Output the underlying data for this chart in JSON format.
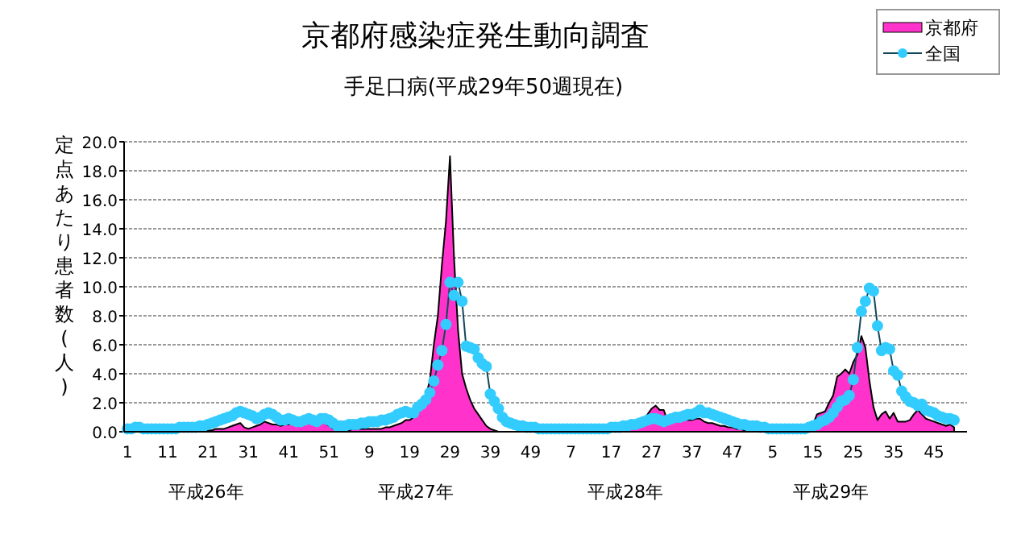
{
  "chart_data": {
    "type": "line",
    "title": "京都府感染症発生動向調査",
    "subtitle": "手足口病(平成29年50週現在)",
    "ylabel": "定点あたり患者数(人)",
    "annotations": [
      "平成26年",
      "平成27年",
      "平成28年",
      "平成29年"
    ],
    "categories": [
      "1",
      null,
      null,
      null,
      null,
      null,
      null,
      null,
      null,
      null,
      "11",
      null,
      null,
      null,
      null,
      null,
      null,
      null,
      null,
      null,
      "21",
      null,
      null,
      null,
      null,
      null,
      null,
      null,
      null,
      null,
      "31",
      null,
      null,
      null,
      null,
      null,
      null,
      null,
      null,
      null,
      "41",
      null,
      null,
      null,
      null,
      null,
      null,
      null,
      null,
      null,
      "51",
      null,
      null,
      null,
      null,
      null,
      null,
      null,
      null,
      null,
      "9",
      null,
      null,
      null,
      null,
      null,
      null,
      null,
      null,
      null,
      "19",
      null,
      null,
      null,
      null,
      null,
      null,
      null,
      null,
      null,
      "29",
      null,
      null,
      null,
      null,
      null,
      null,
      null,
      null,
      null,
      "39",
      null,
      null,
      null,
      null,
      null,
      null,
      null,
      null,
      null,
      "49",
      null,
      null,
      null,
      null,
      null,
      null,
      null,
      null,
      null,
      "7",
      null,
      null,
      null,
      null,
      null,
      null,
      null,
      null,
      null,
      "17",
      null,
      null,
      null,
      null,
      null,
      null,
      null,
      null,
      null,
      "27",
      null,
      null,
      null,
      null,
      null,
      null,
      null,
      null,
      null,
      "37",
      null,
      null,
      null,
      null,
      null,
      null,
      null,
      null,
      null,
      "47",
      null,
      null,
      null,
      null,
      null,
      null,
      null,
      null,
      null,
      "5",
      null,
      null,
      null,
      null,
      null,
      null,
      null,
      null,
      null,
      "15",
      null,
      null,
      null,
      null,
      null,
      null,
      null,
      null,
      null,
      "25",
      null,
      null,
      null,
      null,
      null,
      null,
      null,
      null,
      null,
      "35",
      null,
      null,
      null,
      null,
      null,
      null,
      null,
      null,
      null,
      "45",
      null,
      null,
      null,
      null,
      null
    ],
    "series": [
      {
        "name": "京都府",
        "type": "area",
        "color": "#ff33cc",
        "values": [
          0,
          0,
          0,
          0,
          0,
          0,
          0,
          0,
          0,
          0,
          0,
          0,
          0,
          0,
          0,
          0,
          0,
          0,
          0,
          0,
          0.1,
          0.1,
          0.2,
          0.2,
          0.2,
          0.3,
          0.4,
          0.5,
          0.6,
          0.3,
          0.2,
          0.3,
          0.4,
          0.5,
          0.7,
          0.6,
          0.5,
          0.5,
          0.4,
          0.5,
          0.5,
          0.6,
          0.5,
          0.4,
          0.5,
          0.6,
          0.5,
          0.6,
          0.7,
          0.6,
          0.4,
          0.2,
          0.1,
          0.1,
          0.1,
          0.1,
          0.2,
          0.2,
          0.2,
          0.2,
          0.2,
          0.2,
          0.2,
          0.2,
          0.3,
          0.3,
          0.4,
          0.5,
          0.6,
          0.8,
          0.8,
          1.0,
          1.2,
          1.8,
          2.5,
          3.5,
          6.0,
          8.0,
          11.5,
          14.5,
          19.0,
          12.0,
          7.0,
          4.0,
          3.0,
          2.2,
          1.6,
          1.2,
          0.8,
          0.4,
          0.2,
          0.1,
          0,
          0,
          0,
          0,
          0,
          0,
          0,
          0,
          0,
          0,
          0,
          0,
          0,
          0,
          0,
          0,
          0,
          0,
          0,
          0,
          0,
          0,
          0,
          0,
          0,
          0,
          0,
          0,
          0.1,
          0.1,
          0.2,
          0.2,
          0.3,
          0.4,
          0.5,
          0.6,
          0.8,
          1.2,
          1.6,
          1.8,
          1.5,
          1.5,
          0.7,
          0.8,
          0.9,
          1.1,
          0.9,
          0.8,
          0.8,
          0.9,
          0.9,
          0.7,
          0.6,
          0.6,
          0.5,
          0.4,
          0.4,
          0.3,
          0.3,
          0.2,
          0.2,
          0.1,
          0.1,
          0.1,
          0.1,
          0.1,
          0.1,
          0.1,
          0.1,
          0.1,
          0.1,
          0.1,
          0.1,
          0.1,
          0.1,
          0.1,
          0.2,
          0.3,
          0.5,
          1.2,
          1.3,
          1.4,
          2.0,
          2.5,
          3.8,
          4.0,
          4.3,
          4.0,
          4.8,
          5.3,
          6.6,
          5.8,
          3.5,
          1.7,
          0.8,
          1.2,
          1.4,
          0.9,
          1.3,
          0.7,
          0.7,
          0.7,
          0.8,
          1.2,
          1.5,
          1.2,
          0.9,
          0.8,
          0.7,
          0.6,
          0.5,
          0.4,
          0.5,
          0.3
        ]
      },
      {
        "name": "全国",
        "type": "line",
        "color": "#33ccff",
        "marker": "circle",
        "values": [
          0.2,
          0.2,
          0.3,
          0.3,
          0.2,
          0.2,
          0.2,
          0.2,
          0.2,
          0.2,
          0.2,
          0.2,
          0.2,
          0.3,
          0.3,
          0.3,
          0.3,
          0.3,
          0.4,
          0.4,
          0.5,
          0.6,
          0.7,
          0.8,
          0.9,
          1.0,
          1.1,
          1.3,
          1.4,
          1.3,
          1.2,
          1.1,
          0.9,
          1.0,
          1.2,
          1.3,
          1.2,
          1.0,
          0.8,
          0.8,
          0.9,
          0.8,
          0.7,
          0.7,
          0.8,
          0.9,
          0.8,
          0.7,
          0.9,
          0.9,
          0.8,
          0.6,
          0.4,
          0.4,
          0.4,
          0.5,
          0.5,
          0.5,
          0.6,
          0.6,
          0.7,
          0.7,
          0.7,
          0.8,
          0.8,
          0.9,
          1.0,
          1.2,
          1.3,
          1.4,
          1.3,
          1.3,
          1.7,
          1.9,
          2.2,
          2.7,
          3.5,
          4.6,
          5.6,
          7.4,
          10.3,
          9.4,
          10.3,
          9.0,
          5.9,
          5.8,
          5.7,
          5.1,
          4.7,
          4.5,
          2.6,
          2.1,
          1.6,
          1.0,
          0.7,
          0.6,
          0.5,
          0.4,
          0.4,
          0.3,
          0.3,
          0.3,
          0.2,
          0.2,
          0.2,
          0.2,
          0.2,
          0.2,
          0.2,
          0.2,
          0.2,
          0.2,
          0.2,
          0.2,
          0.2,
          0.2,
          0.2,
          0.2,
          0.2,
          0.2,
          0.3,
          0.3,
          0.3,
          0.4,
          0.4,
          0.5,
          0.5,
          0.6,
          0.7,
          0.8,
          0.9,
          0.9,
          0.8,
          0.7,
          0.8,
          0.9,
          1.0,
          1.0,
          1.1,
          1.2,
          1.2,
          1.3,
          1.5,
          1.3,
          1.3,
          1.2,
          1.1,
          1.0,
          0.9,
          0.8,
          0.7,
          0.6,
          0.5,
          0.5,
          0.4,
          0.4,
          0.4,
          0.3,
          0.3,
          0.2,
          0.2,
          0.2,
          0.2,
          0.2,
          0.2,
          0.2,
          0.2,
          0.2,
          0.2,
          0.3,
          0.4,
          0.5,
          0.7,
          0.8,
          1.0,
          1.3,
          1.7,
          2.1,
          2.2,
          2.5,
          3.6,
          5.8,
          8.3,
          9.0,
          9.9,
          9.7,
          7.3,
          5.6,
          5.8,
          5.7,
          4.2,
          3.9,
          2.8,
          2.4,
          2.1,
          2.0,
          1.8,
          1.9,
          1.5,
          1.4,
          1.3,
          1.1,
          1.0,
          0.9,
          0.9,
          0.8
        ]
      }
    ],
    "ylim": [
      0,
      20
    ],
    "yticks": [
      {
        "value": 0,
        "label": "0.0"
      },
      {
        "value": 2,
        "label": "2.0"
      },
      {
        "value": 4,
        "label": "4.0"
      },
      {
        "value": 6,
        "label": "6.0"
      },
      {
        "value": 8,
        "label": "8.0"
      },
      {
        "value": 10,
        "label": "10.0"
      },
      {
        "value": 12,
        "label": "12.0"
      },
      {
        "value": 14,
        "label": "14.0"
      },
      {
        "value": 16,
        "label": "16.0"
      },
      {
        "value": 18,
        "label": "18.0"
      },
      {
        "value": 20,
        "label": "20.0"
      }
    ],
    "grid": "y",
    "legend": "top right"
  }
}
